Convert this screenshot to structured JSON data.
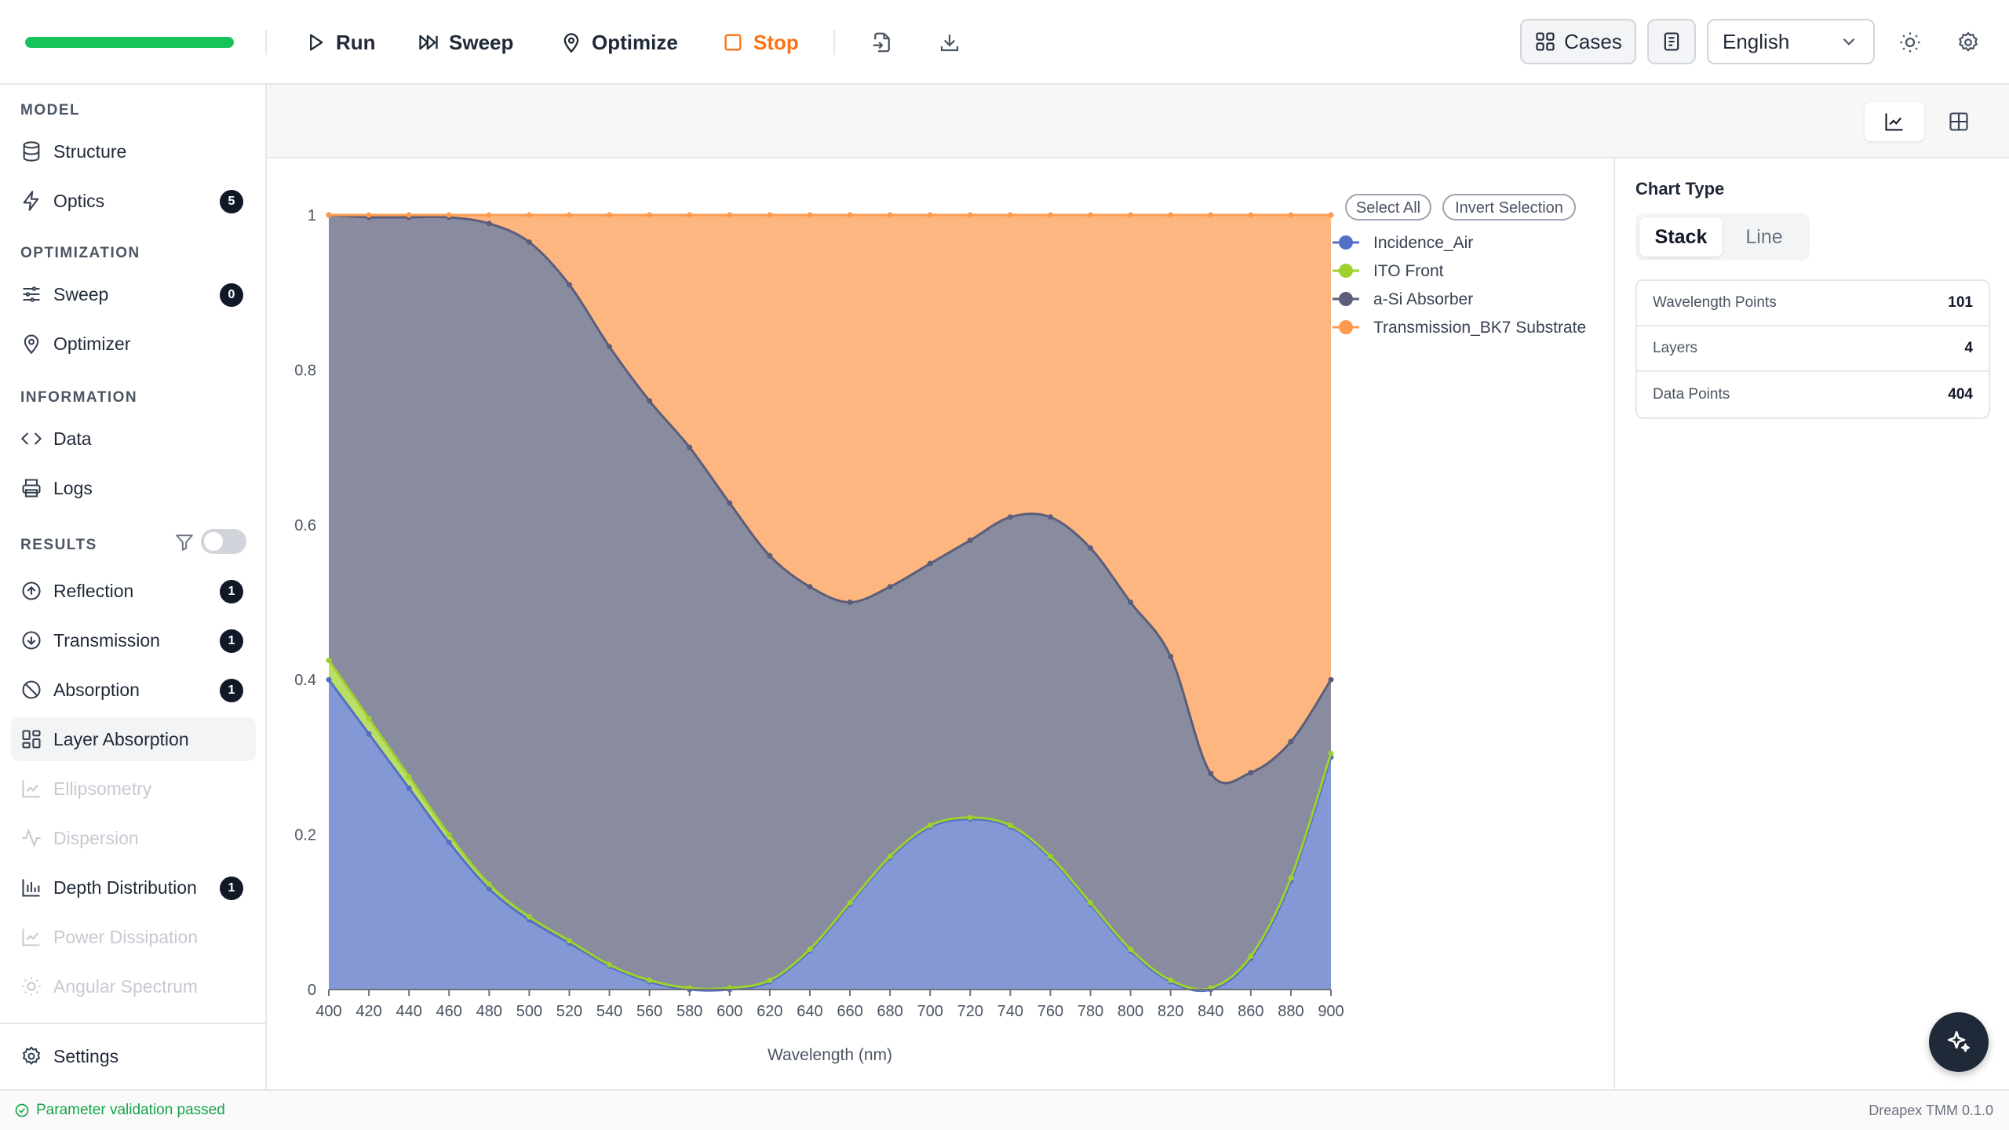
{
  "toolbar": {
    "progress_fraction": 1.0,
    "run_label": "Run",
    "sweep_label": "Sweep",
    "optimize_label": "Optimize",
    "stop_label": "Stop",
    "cases_label": "Cases",
    "language": "English"
  },
  "sidebar": {
    "model_title": "MODEL",
    "structure": "Structure",
    "optics": "Optics",
    "optics_badge": "5",
    "optimization_title": "OPTIMIZATION",
    "sweep": "Sweep",
    "sweep_badge": "0",
    "optimizer": "Optimizer",
    "information_title": "INFORMATION",
    "data": "Data",
    "logs": "Logs",
    "results_title": "RESULTS",
    "reflection": "Reflection",
    "reflection_badge": "1",
    "transmission": "Transmission",
    "transmission_badge": "1",
    "absorption": "Absorption",
    "absorption_badge": "1",
    "layer_absorption": "Layer Absorption",
    "ellipsometry": "Ellipsometry",
    "dispersion": "Dispersion",
    "depth_distribution": "Depth Distribution",
    "depth_badge": "1",
    "power_dissipation": "Power Dissipation",
    "angular_spectrum": "Angular Spectrum",
    "settings": "Settings"
  },
  "right_panel": {
    "chart_type_title": "Chart Type",
    "stack_label": "Stack",
    "line_label": "Line",
    "stats": [
      {
        "label": "Wavelength Points",
        "value": "101"
      },
      {
        "label": "Layers",
        "value": "4"
      },
      {
        "label": "Data Points",
        "value": "404"
      }
    ]
  },
  "legend": {
    "select_all": "Select All",
    "invert_selection": "Invert Selection"
  },
  "status": {
    "message": "Parameter validation passed",
    "version": "Dreapex TMM 0.1.0"
  },
  "chart_data": {
    "type": "area",
    "stacked": true,
    "xlabel": "Wavelength (nm)",
    "ylabel": "",
    "xlim": [
      400,
      900
    ],
    "ylim": [
      0,
      1
    ],
    "x_ticks": [
      400,
      420,
      440,
      460,
      480,
      500,
      520,
      540,
      560,
      580,
      600,
      620,
      640,
      660,
      680,
      700,
      720,
      740,
      760,
      780,
      800,
      820,
      840,
      860,
      880,
      900
    ],
    "y_ticks": [
      0,
      0.2,
      0.4,
      0.6,
      0.8,
      1
    ],
    "y_tick_labels": [
      "0",
      "0.2",
      "0.4",
      "0.6",
      "0.8",
      "1"
    ],
    "legend_position": "top-right",
    "x": [
      400,
      420,
      440,
      460,
      480,
      500,
      520,
      540,
      560,
      580,
      600,
      620,
      640,
      660,
      680,
      700,
      720,
      740,
      760,
      780,
      800,
      820,
      840,
      860,
      880,
      900
    ],
    "series": [
      {
        "name": "Incidence_Air",
        "color": "#5470c6",
        "values": [
          0.4,
          0.33,
          0.26,
          0.19,
          0.13,
          0.09,
          0.06,
          0.03,
          0.01,
          0.0,
          0.0,
          0.01,
          0.05,
          0.11,
          0.17,
          0.21,
          0.22,
          0.21,
          0.17,
          0.11,
          0.05,
          0.01,
          0.0,
          0.04,
          0.14,
          0.3
        ]
      },
      {
        "name": "ITO Front",
        "color": "#9fd12c",
        "values": [
          0.025,
          0.02,
          0.015,
          0.01,
          0.006,
          0.004,
          0.003,
          0.002,
          0.002,
          0.002,
          0.002,
          0.002,
          0.002,
          0.002,
          0.002,
          0.002,
          0.002,
          0.002,
          0.002,
          0.002,
          0.002,
          0.002,
          0.002,
          0.003,
          0.004,
          0.005
        ]
      },
      {
        "name": "a-Si Absorber",
        "color": "#5b5e7a",
        "values": [
          0.575,
          0.647,
          0.722,
          0.797,
          0.853,
          0.871,
          0.847,
          0.798,
          0.748,
          0.698,
          0.626,
          0.548,
          0.468,
          0.388,
          0.348,
          0.338,
          0.358,
          0.398,
          0.438,
          0.458,
          0.448,
          0.418,
          0.277,
          0.237,
          0.176,
          0.095
        ]
      },
      {
        "name": "Transmission_BK7 Substrate",
        "color": "#fd9a4f",
        "values": [
          0.0,
          0.003,
          0.003,
          0.003,
          0.011,
          0.035,
          0.09,
          0.17,
          0.24,
          0.3,
          0.372,
          0.44,
          0.48,
          0.5,
          0.48,
          0.45,
          0.42,
          0.39,
          0.39,
          0.43,
          0.5,
          0.57,
          0.721,
          0.72,
          0.68,
          0.6
        ]
      }
    ]
  }
}
